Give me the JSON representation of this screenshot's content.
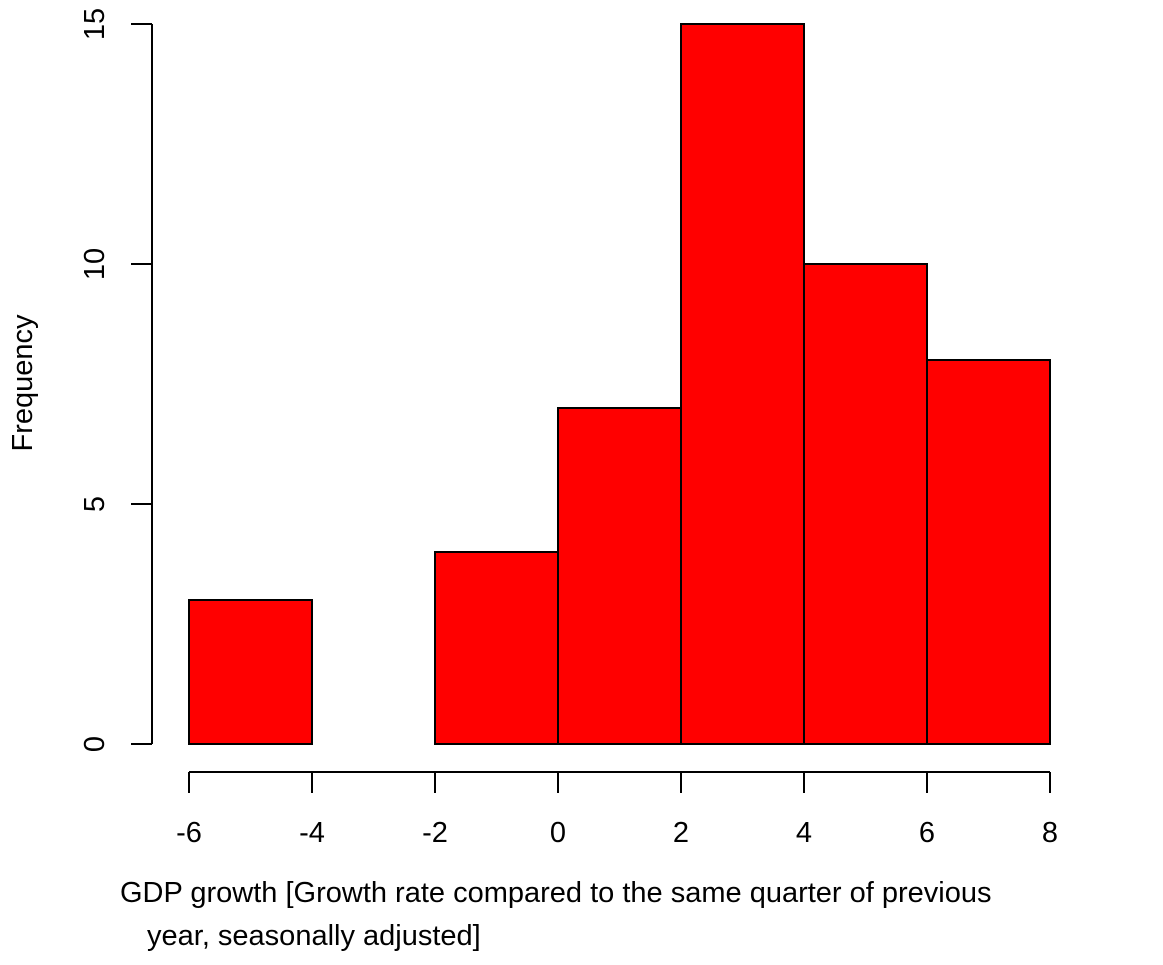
{
  "chart_data": {
    "type": "bar",
    "subtype": "histogram",
    "bin_edges": [
      -6,
      -4,
      -2,
      0,
      2,
      4,
      6,
      8
    ],
    "values": [
      3,
      0,
      4,
      7,
      15,
      10,
      8
    ],
    "x_ticks": [
      -6,
      -4,
      -2,
      0,
      2,
      4,
      6,
      8
    ],
    "y_ticks": [
      0,
      5,
      10,
      15
    ],
    "xlim": [
      -6,
      8
    ],
    "ylim": [
      0,
      15
    ],
    "xlabel_lines": [
      "GDP growth [Growth rate compared to the same quarter of previous",
      "year, seasonally adjusted]"
    ],
    "ylabel": "Frequency",
    "title": "",
    "grid": false,
    "legend": "none",
    "bar_fill": "#ff0000",
    "bar_stroke": "#000000"
  }
}
